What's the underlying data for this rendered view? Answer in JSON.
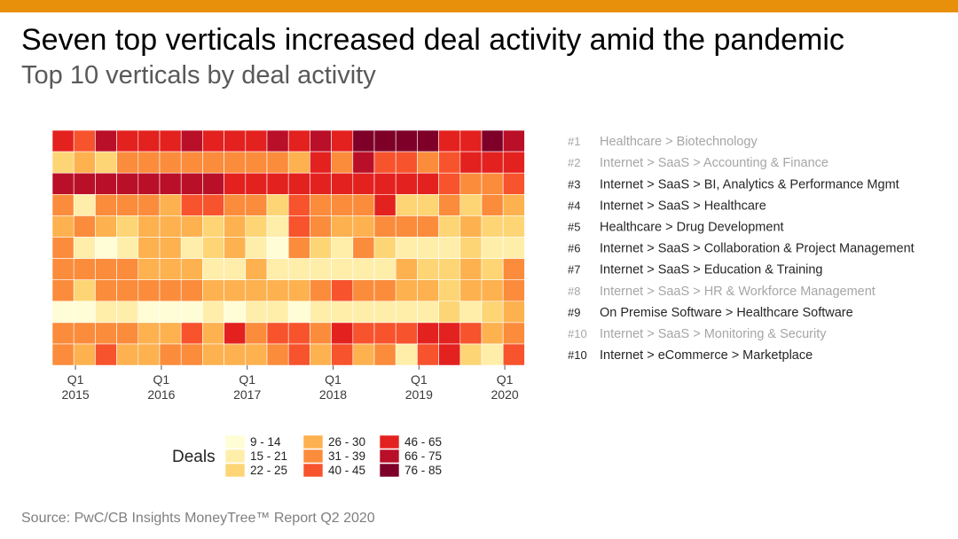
{
  "header": {
    "title": "Seven top verticals increased deal activity amid the pandemic",
    "subtitle": "Top 10 verticals by deal activity"
  },
  "footer": {
    "source": "Source: PwC/CB Insights MoneyTree™ Report Q2 2020"
  },
  "colors": {
    "top_bar": "#E8900C",
    "highlight_row": "#262626",
    "muted_row": "#a6a6a6"
  },
  "chart_data": {
    "type": "heatmap",
    "x_periods": [
      "Q1'15",
      "Q2'15",
      "Q3'15",
      "Q4'15",
      "Q1'16",
      "Q2'16",
      "Q3'16",
      "Q4'16",
      "Q1'17",
      "Q2'17",
      "Q3'17",
      "Q4'17",
      "Q1'18",
      "Q2'18",
      "Q3'18",
      "Q4'18",
      "Q1'19",
      "Q2'19",
      "Q3'19",
      "Q4'19",
      "Q1'20",
      "Q2'20"
    ],
    "x_tick_labels": [
      {
        "period": "Q1'15",
        "line1": "Q1",
        "line2": "2015"
      },
      {
        "period": "Q1'16",
        "line1": "Q1",
        "line2": "2016"
      },
      {
        "period": "Q1'17",
        "line1": "Q1",
        "line2": "2017"
      },
      {
        "period": "Q1'18",
        "line1": "Q1",
        "line2": "2018"
      },
      {
        "period": "Q1'19",
        "line1": "Q1",
        "line2": "2019"
      },
      {
        "period": "Q1'20",
        "line1": "Q1",
        "line2": "2020"
      }
    ],
    "rows": [
      {
        "rank": "#1",
        "label": "Healthcare > Biotechnology",
        "highlight": false
      },
      {
        "rank": "#2",
        "label": "Internet > SaaS > Accounting & Finance",
        "highlight": false
      },
      {
        "rank": "#3",
        "label": "Internet > SaaS > BI, Analytics & Performance Mgmt",
        "highlight": true
      },
      {
        "rank": "#4",
        "label": "Internet > SaaS > Healthcare",
        "highlight": true
      },
      {
        "rank": "#5",
        "label": "Healthcare > Drug Development",
        "highlight": true
      },
      {
        "rank": "#6",
        "label": "Internet > SaaS > Collaboration & Project Management",
        "highlight": true
      },
      {
        "rank": "#7",
        "label": "Internet > SaaS > Education & Training",
        "highlight": true
      },
      {
        "rank": "#8",
        "label": "Internet > SaaS > HR & Workforce Management",
        "highlight": false
      },
      {
        "rank": "#9",
        "label": "On Premise Software > Healthcare Software",
        "highlight": true
      },
      {
        "rank": "#10",
        "label": "Internet > SaaS > Monitoring & Security",
        "highlight": false
      },
      {
        "rank": "#10",
        "label": "Internet > eCommerce > Marketplace",
        "highlight": true
      }
    ],
    "values": [
      [
        50,
        42,
        68,
        52,
        55,
        52,
        68,
        50,
        56,
        54,
        68,
        55,
        66,
        48,
        78,
        80,
        82,
        80,
        52,
        48,
        78,
        68
      ],
      [
        24,
        28,
        24,
        35,
        33,
        35,
        35,
        35,
        33,
        32,
        33,
        28,
        50,
        35,
        68,
        42,
        40,
        38,
        40,
        48,
        55,
        50
      ],
      [
        70,
        68,
        70,
        70,
        70,
        68,
        72,
        72,
        52,
        52,
        52,
        52,
        52,
        52,
        52,
        52,
        52,
        55,
        44,
        38,
        35,
        42
      ],
      [
        33,
        20,
        35,
        35,
        35,
        30,
        42,
        42,
        35,
        33,
        22,
        44,
        32,
        35,
        35,
        50,
        25,
        24,
        38,
        24,
        35,
        30
      ],
      [
        30,
        33,
        30,
        24,
        26,
        28,
        30,
        22,
        30,
        22,
        20,
        44,
        33,
        30,
        26,
        36,
        35,
        32,
        24,
        30,
        25,
        22
      ],
      [
        32,
        20,
        11,
        16,
        28,
        30,
        20,
        22,
        30,
        20,
        12,
        32,
        22,
        21,
        36,
        22,
        18,
        18,
        18,
        22,
        18,
        20
      ],
      [
        35,
        33,
        33,
        33,
        30,
        30,
        30,
        18,
        18,
        28,
        18,
        20,
        21,
        21,
        21,
        21,
        27,
        24,
        22,
        28,
        25,
        32
      ],
      [
        33,
        25,
        33,
        35,
        33,
        33,
        33,
        30,
        26,
        30,
        30,
        26,
        36,
        42,
        33,
        33,
        30,
        30,
        24,
        26,
        29,
        34
      ],
      [
        14,
        13,
        18,
        18,
        13,
        13,
        13,
        16,
        12,
        16,
        17,
        12,
        17,
        17,
        15,
        15,
        18,
        18,
        22,
        20,
        22,
        30
      ],
      [
        35,
        33,
        35,
        35,
        26,
        30,
        42,
        30,
        50,
        33,
        42,
        44,
        36,
        55,
        44,
        42,
        44,
        50,
        55,
        42,
        30,
        33
      ],
      [
        33,
        30,
        42,
        30,
        26,
        34,
        36,
        30,
        26,
        26,
        35,
        44,
        30,
        42,
        30,
        35,
        18,
        42,
        55,
        22,
        18,
        42
      ]
    ],
    "legend": {
      "title": "Deals",
      "bins": [
        {
          "label": "9 - 14",
          "min": 9,
          "max": 14,
          "color": "#FFFDD5"
        },
        {
          "label": "15 - 21",
          "min": 15,
          "max": 21,
          "color": "#FFEEAA"
        },
        {
          "label": "22 - 25",
          "min": 22,
          "max": 25,
          "color": "#FDD575"
        },
        {
          "label": "26 - 30",
          "min": 26,
          "max": 30,
          "color": "#FDB14F"
        },
        {
          "label": "31 - 39",
          "min": 31,
          "max": 39,
          "color": "#FB8C3C"
        },
        {
          "label": "40 - 45",
          "min": 40,
          "max": 45,
          "color": "#F7532D"
        },
        {
          "label": "46 - 65",
          "min": 46,
          "max": 65,
          "color": "#E3211F"
        },
        {
          "label": "66 - 75",
          "min": 66,
          "max": 75,
          "color": "#BA0F28"
        },
        {
          "label": "76 - 85",
          "min": 76,
          "max": 85,
          "color": "#7E0028"
        }
      ]
    }
  }
}
